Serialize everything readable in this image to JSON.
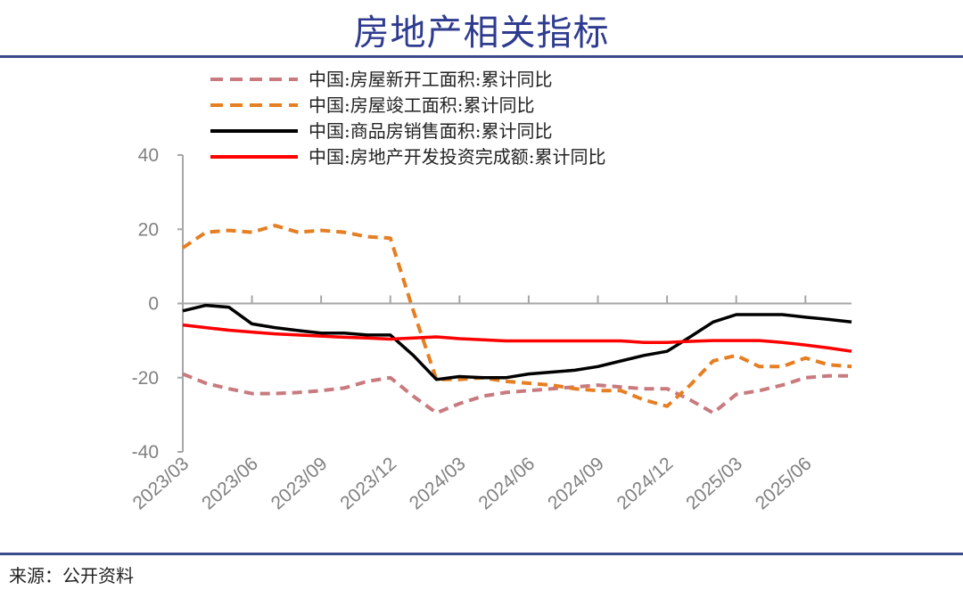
{
  "title": "房地产相关指标",
  "footer": "来源：公开资料",
  "colors": {
    "title": "#2e3b8f",
    "rule": "#3a4a8a",
    "axis": "#a6a6a6"
  },
  "chart_data": {
    "type": "line",
    "title": "",
    "xlabel": "",
    "ylabel": "",
    "ylim": [
      -40,
      40
    ],
    "yticks": [
      "40",
      "20",
      "0",
      "-20",
      "-40"
    ],
    "ytick_values": [
      40,
      20,
      0,
      -20,
      -40
    ],
    "grid": false,
    "legend_position": "top",
    "x": [
      "2023/03",
      "2023/04",
      "2023/05",
      "2023/06",
      "2023/07",
      "2023/08",
      "2023/09",
      "2023/10",
      "2023/11",
      "2023/12",
      "2024/01",
      "2024/02",
      "2024/03",
      "2024/04",
      "2024/05",
      "2024/06",
      "2024/07",
      "2024/08",
      "2024/09",
      "2024/10",
      "2024/11",
      "2024/12",
      "2025/01",
      "2025/02",
      "2025/03",
      "2025/04",
      "2025/05",
      "2025/06",
      "2025/07",
      "2025/08"
    ],
    "xtick_labels": [
      "2023/03",
      "2023/06",
      "2023/09",
      "2023/12",
      "2024/03",
      "2024/06",
      "2024/09",
      "2024/12",
      "2025/03",
      "2025/06"
    ],
    "series": [
      {
        "name": "中国:房屋新开工面积:累计同比",
        "color": "#c87a7e",
        "style": "dashed",
        "values": [
          -19,
          -21.5,
          -23,
          -24.3,
          -24.3,
          -24,
          -23.5,
          -22.8,
          -21,
          -20,
          -25,
          -29.5,
          -27,
          -25,
          -24,
          -23.5,
          -23,
          -22.5,
          -22,
          -22.5,
          -23,
          -23,
          -26,
          -29.5,
          -24.5,
          -23.5,
          -22,
          -20,
          -19.5,
          -19.5
        ]
      },
      {
        "name": "中国:房屋竣工面积:累计同比",
        "color": "#e67e22",
        "style": "dashed",
        "values": [
          15,
          19.2,
          19.7,
          19.2,
          21,
          19.2,
          19.7,
          19.2,
          18,
          17.6,
          -2,
          -20.5,
          -20.5,
          -20,
          -21,
          -21.5,
          -22,
          -23,
          -23.5,
          -23.5,
          -26,
          -27.7,
          -22,
          -15.5,
          -14,
          -17,
          -17,
          -14.7,
          -16.5,
          -17
        ]
      },
      {
        "name": "中国:商品房销售面积:累计同比",
        "color": "#000000",
        "style": "solid",
        "values": [
          -2,
          -0.5,
          -1,
          -5.5,
          -6.5,
          -7.3,
          -8,
          -8,
          -8.5,
          -8.5,
          -14,
          -20.5,
          -19.7,
          -20,
          -20,
          -19,
          -18.5,
          -18,
          -17,
          -15.5,
          -14,
          -12.9,
          -9,
          -5,
          -3,
          -3,
          -3,
          -3.7,
          -4.3,
          -5
        ]
      },
      {
        "name": "中国:房地产开发投资完成额:累计同比",
        "color": "#ff0000",
        "style": "solid",
        "values": [
          -5.8,
          -6.5,
          -7.2,
          -7.7,
          -8.2,
          -8.5,
          -8.8,
          -9.1,
          -9.3,
          -9.6,
          -9.3,
          -9,
          -9.5,
          -9.8,
          -10.1,
          -10.1,
          -10.1,
          -10.1,
          -10.1,
          -10.1,
          -10.5,
          -10.5,
          -10.2,
          -10,
          -10,
          -10,
          -10.5,
          -11.2,
          -12,
          -12.9
        ]
      }
    ]
  }
}
